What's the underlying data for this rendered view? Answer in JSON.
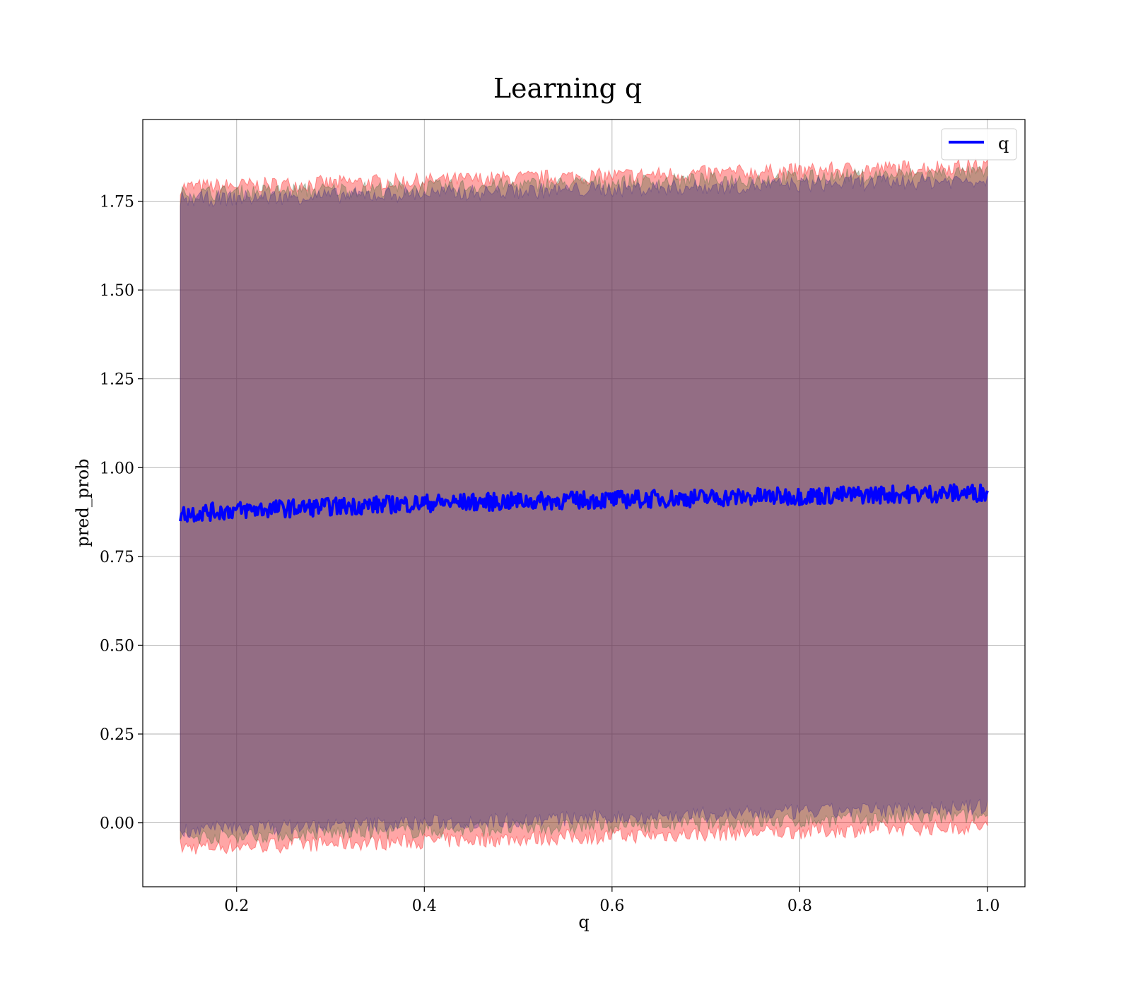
{
  "chart_data": {
    "type": "area",
    "title": "Learning q",
    "xlabel": "q",
    "ylabel": "pred_prob",
    "xlim": [
      0.1,
      1.04
    ],
    "ylim": [
      -0.18,
      1.98
    ],
    "xticks": [
      0.2,
      0.4,
      0.6,
      0.8,
      1.0
    ],
    "xtick_labels": [
      "0.2",
      "0.4",
      "0.6",
      "0.8",
      "1.0"
    ],
    "yticks": [
      0.0,
      0.25,
      0.5,
      0.75,
      1.0,
      1.25,
      1.5,
      1.75
    ],
    "ytick_labels": [
      "0.00",
      "0.25",
      "0.50",
      "0.75",
      "1.00",
      "1.25",
      "1.50",
      "1.75"
    ],
    "grid": true,
    "legend_position": "top-right",
    "series": [
      {
        "name": "q",
        "kind": "line",
        "color": "#0000ff",
        "x": [
          0.14,
          0.2,
          0.3,
          0.4,
          0.5,
          0.6,
          0.7,
          0.8,
          0.9,
          1.0
        ],
        "y": [
          0.87,
          0.88,
          0.89,
          0.9,
          0.905,
          0.91,
          0.915,
          0.92,
          0.925,
          0.93
        ],
        "noise_amplitude": 0.025
      }
    ],
    "bands": [
      {
        "color": "#ff0000",
        "opacity": 0.35,
        "x": [
          0.14,
          1.0
        ],
        "lower": [
          -0.07,
          -0.01
        ],
        "upper": [
          1.79,
          1.85
        ]
      },
      {
        "color": "#4b6a3f",
        "opacity": 0.35,
        "x": [
          0.14,
          1.0
        ],
        "lower": [
          -0.04,
          0.02
        ],
        "upper": [
          1.77,
          1.83
        ]
      },
      {
        "color": "#3f2c8a",
        "opacity": 0.35,
        "x": [
          0.14,
          1.0
        ],
        "lower": [
          -0.02,
          0.045
        ],
        "upper": [
          1.755,
          1.81
        ]
      }
    ]
  }
}
